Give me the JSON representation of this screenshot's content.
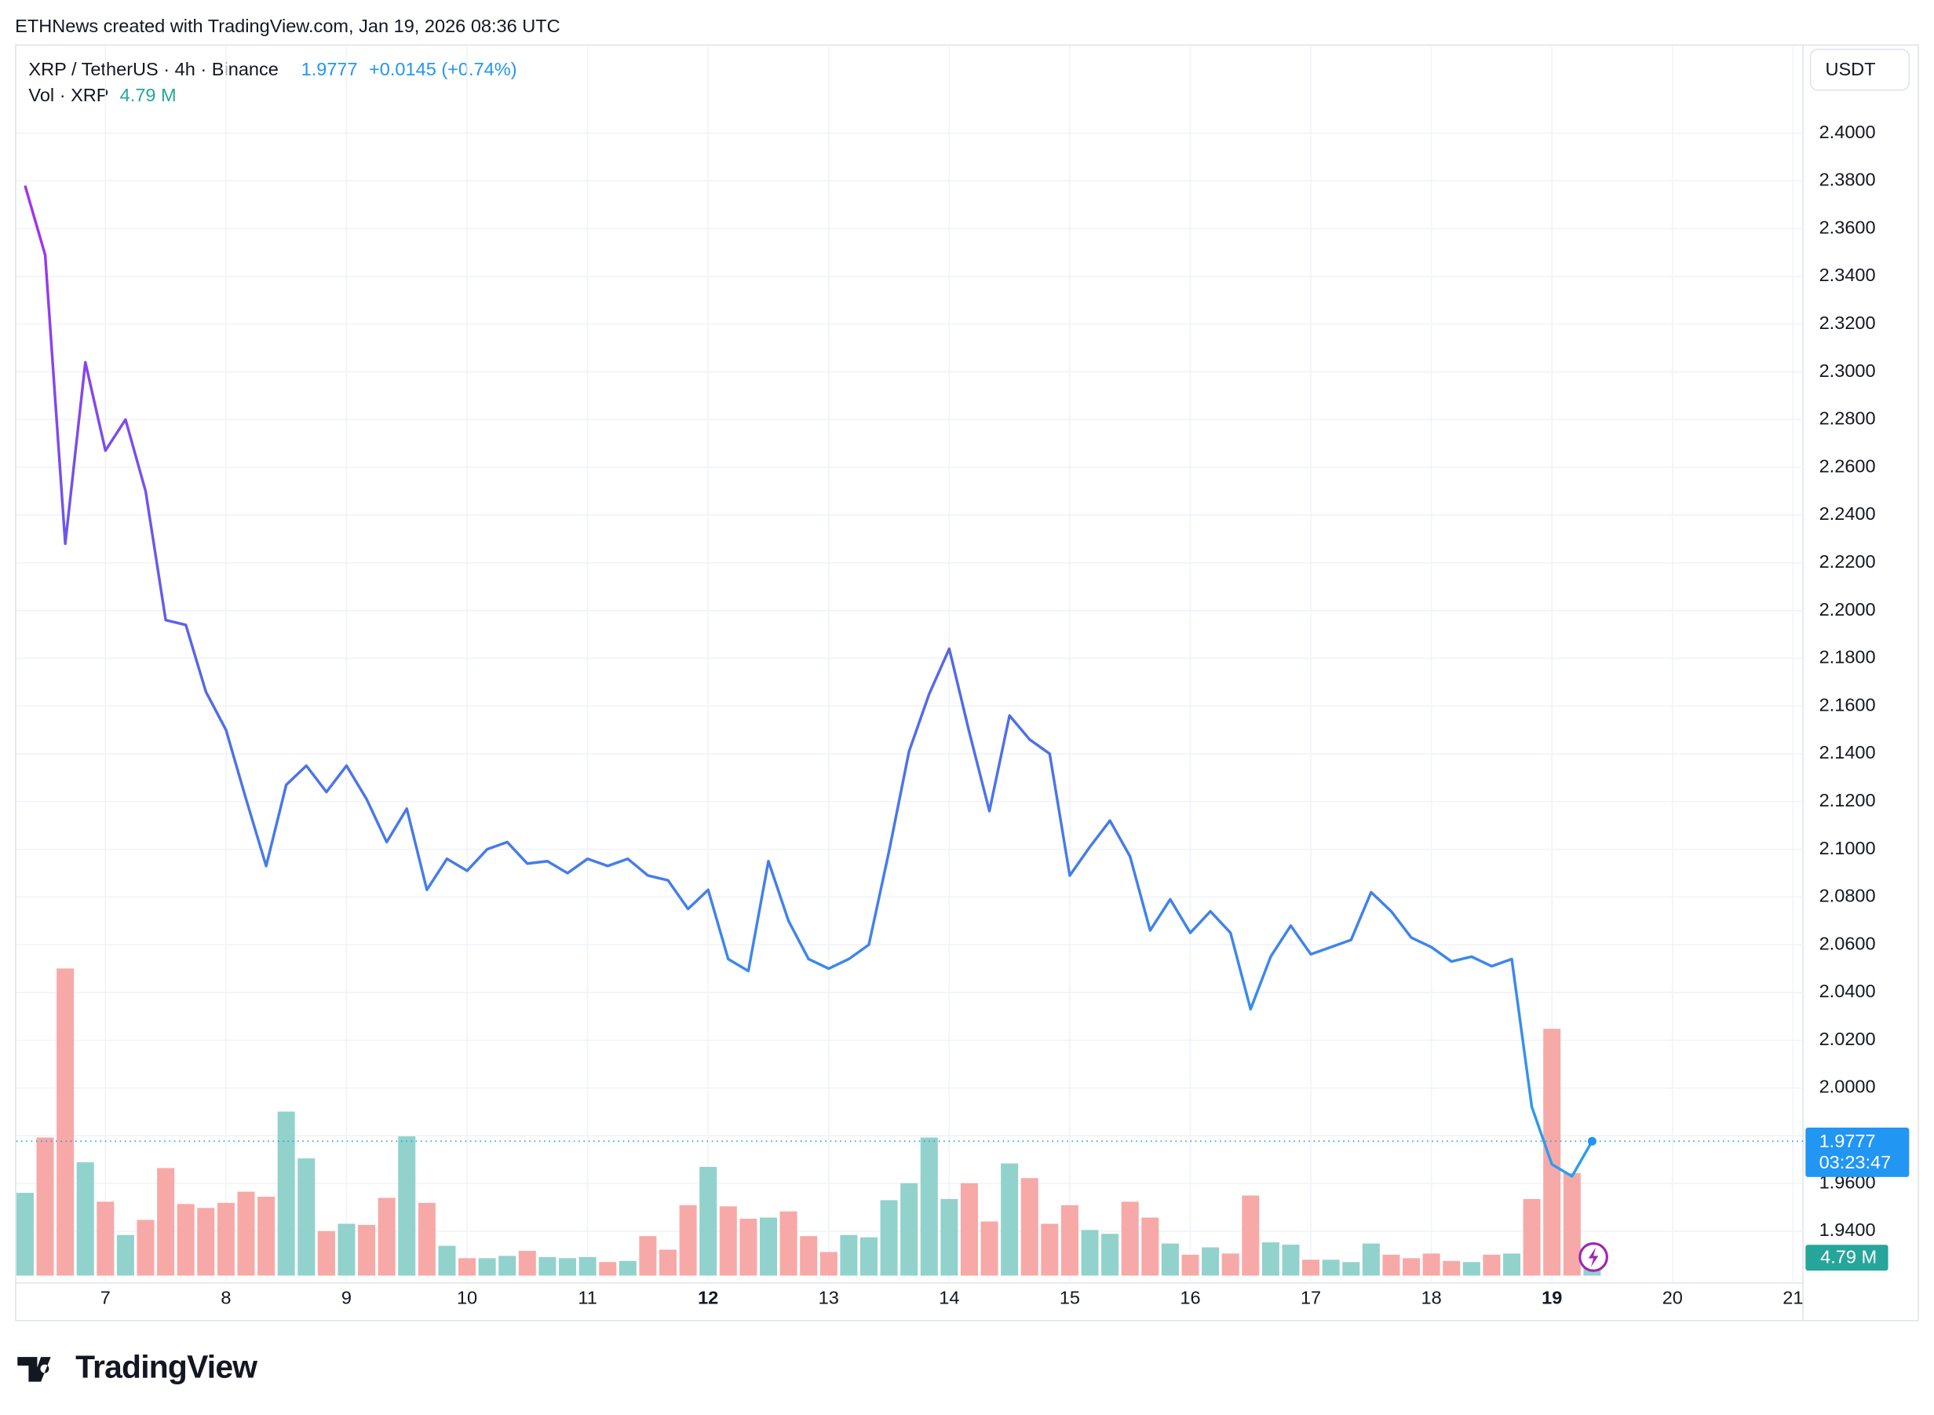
{
  "chart_data": {
    "type": "line",
    "source": "ETHNews created with TradingView.com, Jan 19, 2026 08:36 UTC",
    "title": "XRP / TetherUS · 4h · Binance",
    "change": "+0.0145 (+0.74%)",
    "currency": "USDT",
    "countdown": "03:23:47",
    "brand": "TradingView",
    "series": [
      {
        "type": "line",
        "gradient": [
          "#a62ff0",
          "#5468e8",
          "#2a9ef0"
        ],
        "last_color": "#2196f3",
        "values": [
          2.378,
          2.349,
          2.228,
          2.304,
          2.267,
          2.28,
          2.25,
          2.196,
          2.194,
          2.166,
          2.15,
          2.121,
          2.093,
          2.127,
          2.135,
          2.124,
          2.135,
          2.121,
          2.103,
          2.117,
          2.083,
          2.096,
          2.091,
          2.1,
          2.103,
          2.094,
          2.095,
          2.09,
          2.096,
          2.093,
          2.096,
          2.089,
          2.087,
          2.075,
          2.083,
          2.054,
          2.049,
          2.095,
          2.07,
          2.054,
          2.05,
          2.054,
          2.06,
          2.099,
          2.141,
          2.165,
          2.184,
          2.149,
          2.116,
          2.156,
          2.146,
          2.14,
          2.089,
          2.101,
          2.112,
          2.097,
          2.066,
          2.079,
          2.065,
          2.074,
          2.065,
          2.033,
          2.055,
          2.068,
          2.056,
          2.059,
          2.062,
          2.082,
          2.074,
          2.063,
          2.059,
          2.053,
          2.055,
          2.051,
          2.054,
          1.992,
          1.968,
          1.963,
          1.9777
        ]
      },
      {
        "type": "bar",
        "name": "Vol · XRP",
        "axis": "y2",
        "last_label": "4.79 M",
        "label_color": "#26a69a",
        "values": [
          21.4,
          35.7,
          79.4,
          29.3,
          19.1,
          10.5,
          14.4,
          27.8,
          18.5,
          17.5,
          18.8,
          21.7,
          20.4,
          42.4,
          30.3,
          11.5,
          13.4,
          13.1,
          20.1,
          36.0,
          18.8,
          7.7,
          4.5,
          4.5,
          5.1,
          6.4,
          4.8,
          4.5,
          4.8,
          3.5,
          3.8,
          10.2,
          6.7,
          18.2,
          28.1,
          17.9,
          14.7,
          15.0,
          16.6,
          10.2,
          6.1,
          10.5,
          9.9,
          19.5,
          23.9,
          35.7,
          19.8,
          23.9,
          14.0,
          29.0,
          25.2,
          13.4,
          18.2,
          11.8,
          10.8,
          19.1,
          15.0,
          8.3,
          5.4,
          7.3,
          5.7,
          20.7,
          8.6,
          8.0,
          4.1,
          4.1,
          3.5,
          8.3,
          5.4,
          4.5,
          5.7,
          3.8,
          3.5,
          5.4,
          5.7,
          19.8,
          63.8,
          26.5,
          4.79
        ],
        "colors": [
          "#92d2cc",
          "#f7a9a7",
          "#f7a9a7",
          "#92d2cc",
          "#f7a9a7",
          "#92d2cc",
          "#f7a9a7",
          "#f7a9a7",
          "#f7a9a7",
          "#f7a9a7",
          "#f7a9a7",
          "#f7a9a7",
          "#f7a9a7",
          "#92d2cc",
          "#92d2cc",
          "#f7a9a7",
          "#92d2cc",
          "#f7a9a7",
          "#f7a9a7",
          "#92d2cc",
          "#f7a9a7",
          "#92d2cc",
          "#f7a9a7",
          "#92d2cc",
          "#92d2cc",
          "#f7a9a7",
          "#92d2cc",
          "#92d2cc",
          "#92d2cc",
          "#f7a9a7",
          "#92d2cc",
          "#f7a9a7",
          "#f7a9a7",
          "#f7a9a7",
          "#92d2cc",
          "#f7a9a7",
          "#f7a9a7",
          "#92d2cc",
          "#f7a9a7",
          "#f7a9a7",
          "#f7a9a7",
          "#92d2cc",
          "#92d2cc",
          "#92d2cc",
          "#92d2cc",
          "#92d2cc",
          "#92d2cc",
          "#f7a9a7",
          "#f7a9a7",
          "#92d2cc",
          "#f7a9a7",
          "#f7a9a7",
          "#f7a9a7",
          "#92d2cc",
          "#92d2cc",
          "#f7a9a7",
          "#f7a9a7",
          "#92d2cc",
          "#f7a9a7",
          "#92d2cc",
          "#f7a9a7",
          "#f7a9a7",
          "#92d2cc",
          "#92d2cc",
          "#f7a9a7",
          "#92d2cc",
          "#92d2cc",
          "#92d2cc",
          "#f7a9a7",
          "#f7a9a7",
          "#f7a9a7",
          "#f7a9a7",
          "#92d2cc",
          "#f7a9a7",
          "#92d2cc",
          "#f7a9a7",
          "#f7a9a7",
          "#f7a9a7",
          "#92d2cc"
        ]
      }
    ],
    "xlim": [
      -0.5,
      88.5
    ],
    "xticks": [
      {
        "value": 4,
        "label": "7"
      },
      {
        "value": 10,
        "label": "8"
      },
      {
        "value": 16,
        "label": "9"
      },
      {
        "value": 22,
        "label": "10"
      },
      {
        "value": 28,
        "label": "11"
      },
      {
        "value": 34,
        "label": "12"
      },
      {
        "value": 40,
        "label": "13"
      },
      {
        "value": 46,
        "label": "14"
      },
      {
        "value": 52,
        "label": "15"
      },
      {
        "value": 58,
        "label": "16"
      },
      {
        "value": 64,
        "label": "17"
      },
      {
        "value": 70,
        "label": "18"
      },
      {
        "value": 76,
        "label": "19"
      },
      {
        "value": 82,
        "label": "20"
      },
      {
        "value": 88,
        "label": "21"
      }
    ],
    "bold_xticks": [
      5,
      12
    ],
    "ylim": [
      1.9214,
      2.4351
    ],
    "yticks": [
      {
        "value": 2.4,
        "label": "2.4000"
      },
      {
        "value": 2.38,
        "label": "2.3800"
      },
      {
        "value": 2.36,
        "label": "2.3600"
      },
      {
        "value": 2.34,
        "label": "2.3400"
      },
      {
        "value": 2.32,
        "label": "2.3200"
      },
      {
        "value": 2.3,
        "label": "2.3000"
      },
      {
        "value": 2.28,
        "label": "2.2800"
      },
      {
        "value": 2.26,
        "label": "2.2600"
      },
      {
        "value": 2.24,
        "label": "2.2400"
      },
      {
        "value": 2.22,
        "label": "2.2200"
      },
      {
        "value": 2.2,
        "label": "2.2000"
      },
      {
        "value": 2.18,
        "label": "2.1800"
      },
      {
        "value": 2.16,
        "label": "2.1600"
      },
      {
        "value": 2.14,
        "label": "2.1400"
      },
      {
        "value": 2.12,
        "label": "2.1200"
      },
      {
        "value": 2.1,
        "label": "2.1000"
      },
      {
        "value": 2.08,
        "label": "2.0800"
      },
      {
        "value": 2.06,
        "label": "2.0600"
      },
      {
        "value": 2.04,
        "label": "2.0400"
      },
      {
        "value": 2.02,
        "label": "2.0200"
      },
      {
        "value": 2.0,
        "label": "2.0000"
      },
      {
        "value": 1.98,
        "label": "1.9800"
      },
      {
        "value": 1.96,
        "label": "1.9600"
      },
      {
        "value": 1.94,
        "label": "1.9400"
      }
    ],
    "y2lim": [
      0,
      317
    ],
    "grid": true
  }
}
